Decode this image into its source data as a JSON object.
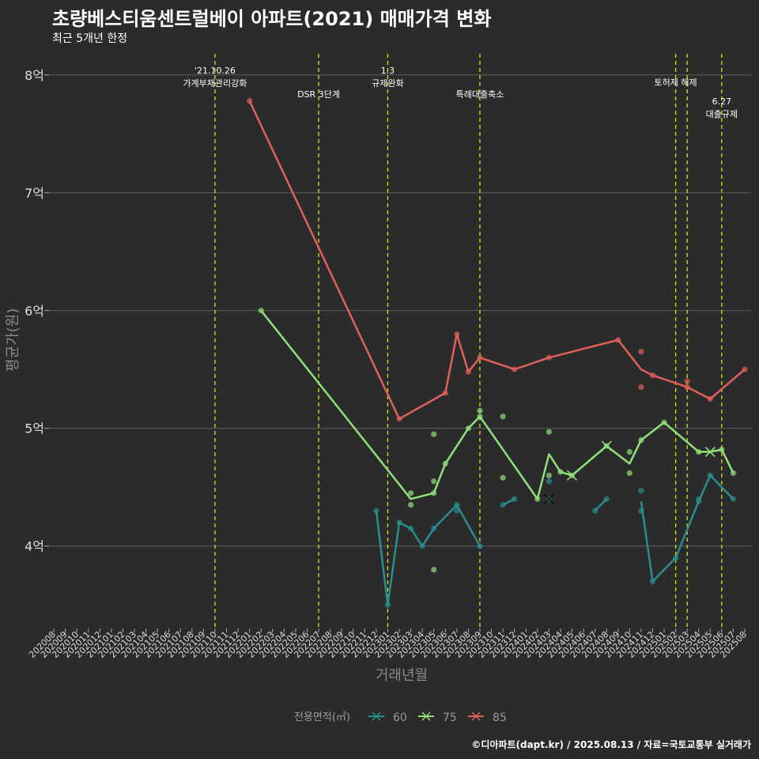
{
  "title": "초량베스티움센트럴베이 아파트(2021) 매매가격 변화",
  "subtitle": "최근 5개년 한정",
  "caption": "©디아파트(dapt.kr) / 2025.08.13 / 자료=국토교통부 실거래가",
  "chart_data": {
    "type": "line",
    "xlabel": "거래년월",
    "ylabel": "평균가(원)",
    "categories": [
      "202008",
      "202009",
      "202010",
      "202011",
      "202012",
      "202101",
      "202102",
      "202103",
      "202104",
      "202105",
      "202106",
      "202107",
      "202108",
      "202109",
      "202110",
      "202111",
      "202112",
      "202201",
      "202202",
      "202203",
      "202204",
      "202205",
      "202206",
      "202207",
      "202208",
      "202209",
      "202210",
      "202211",
      "202212",
      "202301",
      "202302",
      "202303",
      "202304",
      "202305",
      "202306",
      "202307",
      "202308",
      "202309",
      "202310",
      "202311",
      "202312",
      "202401",
      "202402",
      "202403",
      "202404",
      "202405",
      "202406",
      "202407",
      "202408",
      "202409",
      "202410",
      "202411",
      "202412",
      "202501",
      "202502",
      "202503",
      "202504",
      "202505",
      "202506",
      "202507",
      "202508"
    ],
    "yticks": [
      4,
      5,
      6,
      7,
      8
    ],
    "ytick_labels": [
      "4억",
      "5억",
      "6억",
      "7억",
      "8억"
    ],
    "ylim": [
      3.3,
      8.2
    ],
    "grid": true,
    "legend": {
      "title": "전용면적(㎡)",
      "position": "bottom"
    },
    "series": [
      {
        "name": "60",
        "color": "#2a8e8e",
        "segments": [
          [
            [
              "202212",
              4.3
            ],
            [
              "202301",
              3.5
            ],
            [
              "202302",
              4.2
            ],
            [
              "202303",
              4.15
            ],
            [
              "202304",
              4.0
            ],
            [
              "202305",
              4.15
            ],
            [
              "202307",
              4.35
            ],
            [
              "202309",
              4.0
            ]
          ],
          [
            [
              "202311",
              4.35
            ],
            [
              "202312",
              4.4
            ]
          ],
          [
            [
              "202407",
              4.3
            ],
            [
              "202408",
              4.4
            ]
          ],
          [
            [
              "202411",
              4.38
            ],
            [
              "202412",
              3.7
            ],
            [
              "202502",
              3.9
            ],
            [
              "202504",
              4.38
            ],
            [
              "202505",
              4.6
            ],
            [
              "202507",
              4.4
            ]
          ]
        ],
        "points": [
          [
            "202212",
            4.3
          ],
          [
            "202301",
            3.5
          ],
          [
            "202302",
            4.2
          ],
          [
            "202303",
            4.15
          ],
          [
            "202304",
            4.0
          ],
          [
            "202305",
            4.15
          ],
          [
            "202307",
            4.35
          ],
          [
            "202307",
            4.3
          ],
          [
            "202309",
            4.0
          ],
          [
            "202311",
            4.35
          ],
          [
            "202312",
            4.4
          ],
          [
            "202403",
            4.4
          ],
          [
            "202403",
            4.55
          ],
          [
            "202407",
            4.3
          ],
          [
            "202408",
            4.4
          ],
          [
            "202411",
            4.3
          ],
          [
            "202411",
            4.47
          ],
          [
            "202412",
            3.7
          ],
          [
            "202502",
            3.9
          ],
          [
            "202504",
            4.38
          ],
          [
            "202504",
            4.4
          ],
          [
            "202505",
            4.6
          ],
          [
            "202507",
            4.4
          ]
        ],
        "x_marks": [
          [
            "202403",
            4.4
          ]
        ]
      },
      {
        "name": "75",
        "color": "#90e07a",
        "segments": [
          [
            [
              "202202",
              6.0
            ],
            [
              "202303",
              4.4
            ],
            [
              "202305",
              4.45
            ],
            [
              "202306",
              4.7
            ],
            [
              "202308",
              5.0
            ],
            [
              "202309",
              5.1
            ],
            [
              "202402",
              4.4
            ],
            [
              "202403",
              4.78
            ],
            [
              "202404",
              4.63
            ],
            [
              "202405",
              4.6
            ],
            [
              "202408",
              4.85
            ],
            [
              "202410",
              4.7
            ],
            [
              "202411",
              4.9
            ],
            [
              "202501",
              5.05
            ],
            [
              "202504",
              4.8
            ],
            [
              "202505",
              4.8
            ],
            [
              "202506",
              4.82
            ],
            [
              "202507",
              4.62
            ]
          ]
        ],
        "points": [
          [
            "202202",
            6.0
          ],
          [
            "202303",
            4.45
          ],
          [
            "202303",
            4.35
          ],
          [
            "202305",
            4.55
          ],
          [
            "202305",
            4.95
          ],
          [
            "202305",
            3.8
          ],
          [
            "202305",
            4.45
          ],
          [
            "202306",
            4.7
          ],
          [
            "202308",
            5.0
          ],
          [
            "202309",
            5.15
          ],
          [
            "202309",
            5.1
          ],
          [
            "202311",
            5.1
          ],
          [
            "202311",
            4.58
          ],
          [
            "202402",
            4.4
          ],
          [
            "202403",
            4.97
          ],
          [
            "202403",
            4.6
          ],
          [
            "202404",
            4.63
          ],
          [
            "202405",
            4.6
          ],
          [
            "202408",
            4.85
          ],
          [
            "202410",
            4.8
          ],
          [
            "202410",
            4.62
          ],
          [
            "202411",
            4.9
          ],
          [
            "202501",
            5.05
          ],
          [
            "202504",
            4.8
          ],
          [
            "202506",
            4.82
          ],
          [
            "202507",
            4.62
          ]
        ],
        "x_marks": [
          [
            "202405",
            4.6
          ],
          [
            "202408",
            4.85
          ],
          [
            "202505",
            4.8
          ]
        ]
      },
      {
        "name": "85",
        "color": "#e0605a",
        "segments": [
          [
            [
              "202201",
              7.78
            ],
            [
              "202302",
              5.08
            ],
            [
              "202306",
              5.3
            ],
            [
              "202307",
              5.8
            ],
            [
              "202308",
              5.48
            ],
            [
              "202309",
              5.6
            ],
            [
              "202312",
              5.5
            ],
            [
              "202403",
              5.6
            ],
            [
              "202409",
              5.75
            ],
            [
              "202411",
              5.5
            ],
            [
              "202412",
              5.45
            ],
            [
              "202503",
              5.35
            ],
            [
              "202505",
              5.25
            ],
            [
              "202508",
              5.5
            ]
          ]
        ],
        "points": [
          [
            "202201",
            7.78
          ],
          [
            "202302",
            5.08
          ],
          [
            "202306",
            5.3
          ],
          [
            "202307",
            5.8
          ],
          [
            "202308",
            5.48
          ],
          [
            "202309",
            5.6
          ],
          [
            "202312",
            5.5
          ],
          [
            "202403",
            5.6
          ],
          [
            "202409",
            5.75
          ],
          [
            "202411",
            5.65
          ],
          [
            "202411",
            5.35
          ],
          [
            "202412",
            5.45
          ],
          [
            "202503",
            5.4
          ],
          [
            "202503",
            5.35
          ],
          [
            "202505",
            5.25
          ],
          [
            "202508",
            5.5
          ]
        ],
        "x_marks": []
      }
    ],
    "events": [
      {
        "x": "202110",
        "lines": [
          "'21.10.26",
          "가계부채관리강화"
        ],
        "level": 1
      },
      {
        "x": "202207",
        "lines": [
          "DSR 3단계"
        ],
        "level": 2
      },
      {
        "x": "202301",
        "lines": [
          "1.3",
          "규제완화"
        ],
        "level": 1
      },
      {
        "x": "202309",
        "lines": [
          "특례대출축소"
        ],
        "level": 2
      },
      {
        "x": "202502",
        "lines": [
          "토허제 해제"
        ],
        "level": 1.5
      },
      {
        "x": "202503",
        "lines": [],
        "level": 0
      },
      {
        "x": "202506",
        "lines": [
          "6.27",
          "대출규제"
        ],
        "level": 2.3
      }
    ],
    "event_line_color": "#dddd22"
  }
}
